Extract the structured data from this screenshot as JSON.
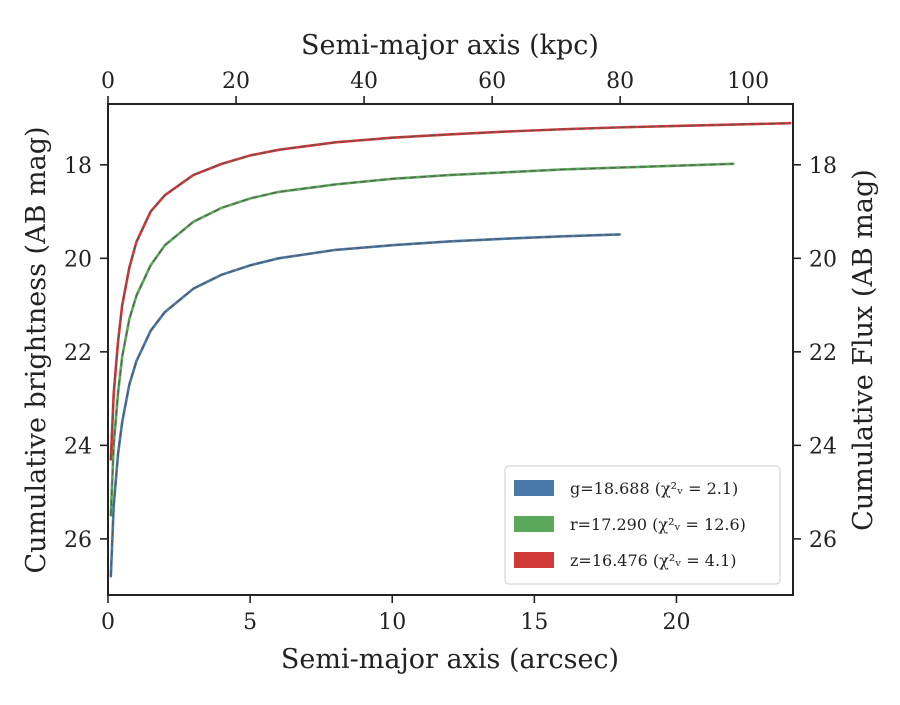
{
  "chart_data": {
    "type": "line",
    "xlabel": "Semi-major axis (arcsec)",
    "ylabel": "Cumulative brightness (AB mag)",
    "x2label": "Semi-major axis (kpc)",
    "y2label": "Cumulative Flux (AB mag)",
    "xlim": [
      0,
      24.1
    ],
    "ylim": [
      27.2,
      16.7
    ],
    "y_inverted": true,
    "x2lim": [
      0,
      107
    ],
    "xticks": [
      0,
      5,
      10,
      15,
      20
    ],
    "yticks": [
      18,
      20,
      22,
      24,
      26
    ],
    "x2ticks": [
      0,
      20,
      40,
      60,
      80,
      100
    ],
    "xtick_labels": [
      "0",
      "5",
      "10",
      "15",
      "20"
    ],
    "ytick_labels": [
      "18",
      "20",
      "22",
      "24",
      "26"
    ],
    "x2tick_labels": [
      "0",
      "20",
      "40",
      "60",
      "80",
      "100"
    ],
    "grid": false,
    "legend_position": "lower-right",
    "series": [
      {
        "name": "g=18.688 ($\\chi^2_\\nu = 2.1$)",
        "legend_text": "g=18.688 (χ²ᵥ = 2.1)",
        "color": "#4a78a8",
        "asymptote": 18.688,
        "x": [
          0.1,
          0.2,
          0.35,
          0.5,
          0.75,
          1.0,
          1.5,
          2.0,
          3.0,
          4.0,
          5.0,
          6.0,
          8.0,
          10.0,
          12.0,
          14.0,
          16.0,
          18.0
        ],
        "y": [
          26.8,
          25.3,
          24.2,
          23.5,
          22.7,
          22.2,
          21.55,
          21.15,
          20.65,
          20.35,
          20.15,
          20.0,
          19.82,
          19.72,
          19.64,
          19.58,
          19.53,
          19.49
        ]
      },
      {
        "name": "r=17.290 ($\\chi^2_\\nu = 12.6$)",
        "legend_text": "r=17.290 (χ²ᵥ = 12.6)",
        "color": "#5ba85b",
        "asymptote": 17.29,
        "x": [
          0.1,
          0.2,
          0.35,
          0.5,
          0.75,
          1.0,
          1.5,
          2.0,
          3.0,
          4.0,
          5.0,
          6.0,
          8.0,
          10.0,
          12.0,
          14.0,
          16.0,
          18.0,
          20.0,
          22.0
        ],
        "y": [
          25.5,
          24.0,
          22.9,
          22.1,
          21.3,
          20.8,
          20.15,
          19.72,
          19.22,
          18.92,
          18.72,
          18.58,
          18.42,
          18.3,
          18.22,
          18.16,
          18.1,
          18.06,
          18.02,
          17.98
        ]
      },
      {
        "name": "z=16.476 ($\\chi^2_\\nu = 4.1$)",
        "legend_text": "z=16.476 (χ²ᵥ = 4.1)",
        "color": "#d13838",
        "asymptote": 16.476,
        "x": [
          0.1,
          0.2,
          0.35,
          0.5,
          0.75,
          1.0,
          1.5,
          2.0,
          3.0,
          4.0,
          5.0,
          6.0,
          8.0,
          10.0,
          12.0,
          14.0,
          16.0,
          18.0,
          20.0,
          22.0,
          24.0
        ],
        "y": [
          24.3,
          22.9,
          21.8,
          21.0,
          20.2,
          19.65,
          19.0,
          18.65,
          18.22,
          17.98,
          17.8,
          17.68,
          17.52,
          17.42,
          17.35,
          17.29,
          17.24,
          17.2,
          17.17,
          17.14,
          17.11
        ]
      }
    ]
  }
}
